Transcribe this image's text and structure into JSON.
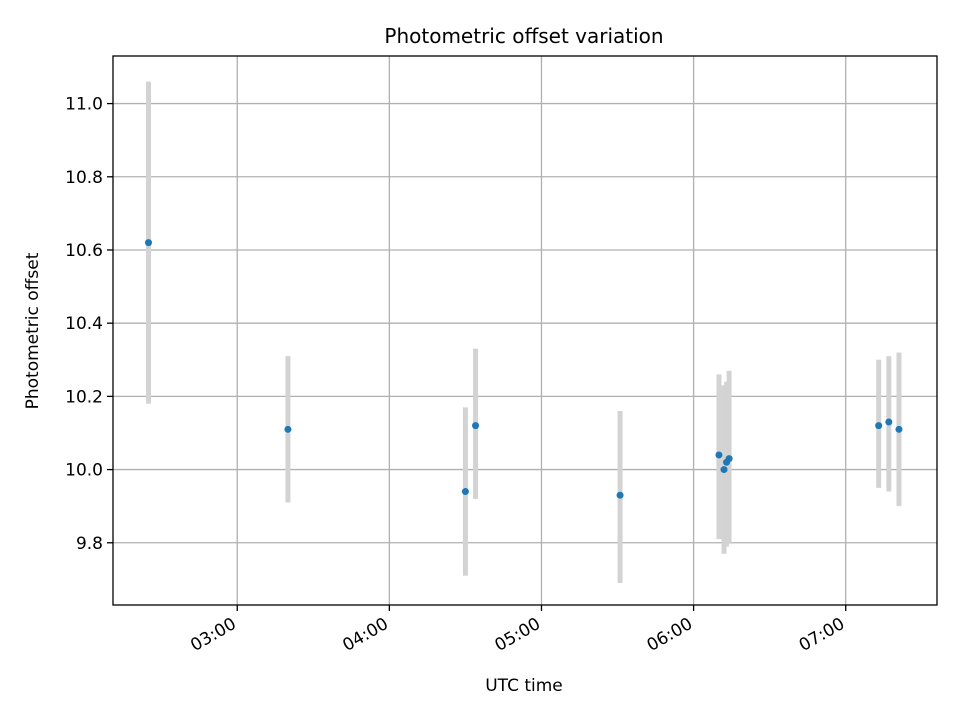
{
  "chart_data": {
    "type": "scatter",
    "title": "Photometric offset variation",
    "xlabel": "UTC time",
    "ylabel": "Photometric offset",
    "xlim": [
      "02:11",
      "07:36"
    ],
    "ylim": [
      9.63,
      11.13
    ],
    "grid": true,
    "x_ticks": [
      "03:00",
      "04:00",
      "05:00",
      "06:00",
      "07:00"
    ],
    "y_ticks": [
      9.8,
      10.0,
      10.2,
      10.4,
      10.6,
      10.8,
      11.0
    ],
    "y_tick_labels": [
      "9.8",
      "10.0",
      "10.2",
      "10.4",
      "10.6",
      "10.8",
      "11.0"
    ],
    "colors": {
      "point": "#1f77b4",
      "errorbar": "#d3d3d3",
      "grid": "#b0b0b0"
    },
    "points": [
      {
        "x": "02:25",
        "y": 10.62,
        "ymin": 10.18,
        "ymax": 11.06
      },
      {
        "x": "03:20",
        "y": 10.11,
        "ymin": 9.91,
        "ymax": 10.31
      },
      {
        "x": "04:30",
        "y": 9.94,
        "ymin": 9.71,
        "ymax": 10.17
      },
      {
        "x": "04:34",
        "y": 10.12,
        "ymin": 9.92,
        "ymax": 10.33
      },
      {
        "x": "05:31",
        "y": 9.93,
        "ymin": 9.69,
        "ymax": 10.16
      },
      {
        "x": "06:10",
        "y": 10.04,
        "ymin": 9.81,
        "ymax": 10.26
      },
      {
        "x": "06:12",
        "y": 10.0,
        "ymin": 9.77,
        "ymax": 10.23
      },
      {
        "x": "06:13",
        "y": 10.02,
        "ymin": 9.79,
        "ymax": 10.24
      },
      {
        "x": "06:14",
        "y": 10.03,
        "ymin": 9.8,
        "ymax": 10.27
      },
      {
        "x": "07:13",
        "y": 10.12,
        "ymin": 9.95,
        "ymax": 10.3
      },
      {
        "x": "07:17",
        "y": 10.13,
        "ymin": 9.94,
        "ymax": 10.31
      },
      {
        "x": "07:21",
        "y": 10.11,
        "ymin": 9.9,
        "ymax": 10.32
      }
    ]
  }
}
